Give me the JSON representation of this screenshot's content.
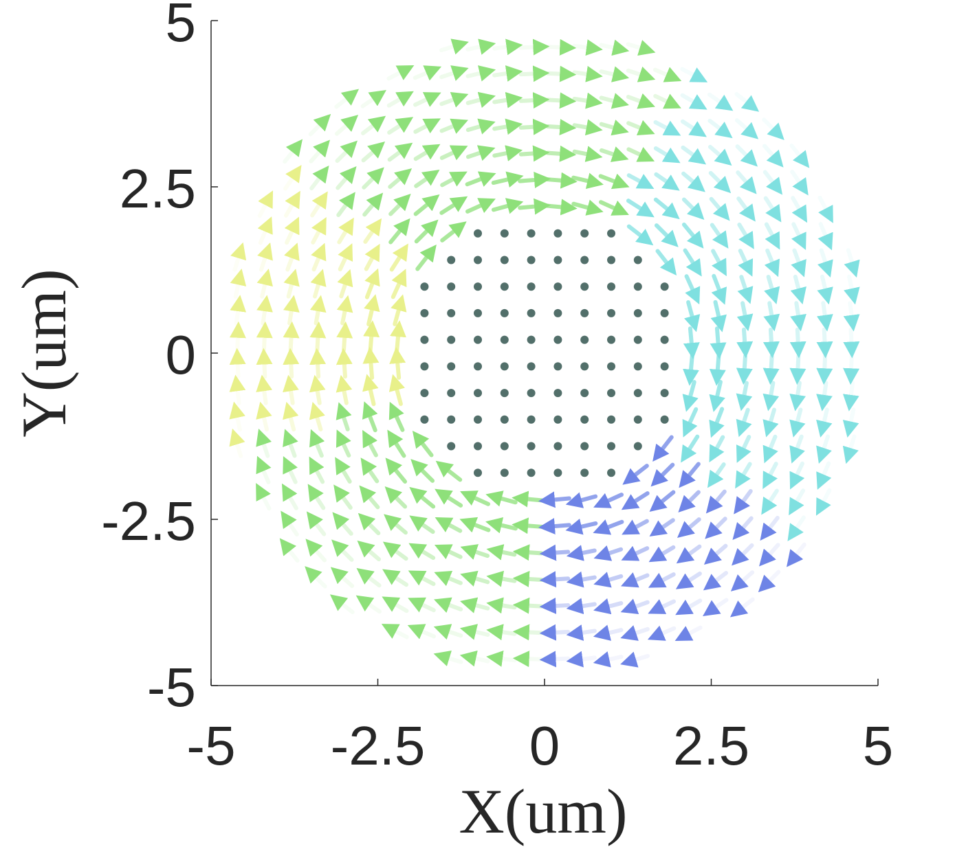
{
  "chart_data": {
    "type": "vector-field",
    "title": "",
    "xlabel": "X(um)",
    "ylabel": "Y(um)",
    "xlim": [
      -5,
      5
    ],
    "ylim": [
      -5,
      5
    ],
    "xticks": [
      "-5",
      "-2.5",
      "0",
      "2.5",
      "5"
    ],
    "yticks": [
      "-5",
      "-2.5",
      "0",
      "2.5",
      "5"
    ],
    "xtick_values": [
      -5,
      -2.5,
      0,
      2.5,
      5
    ],
    "ytick_values": [
      -5,
      -2.5,
      0,
      2.5,
      5
    ],
    "grid": false,
    "legend": "none",
    "colors": {
      "axis": "#262626",
      "core": "#3f5f5a",
      "inner": "#5cb8a2",
      "ring": "#7fe0e0",
      "green": "#8ee07a",
      "yellow": "#e8f08a",
      "blue": "#6e84e6",
      "purple": "#7a5ad8",
      "pink": "#f08a8a"
    },
    "field": {
      "description_units": "um",
      "grid_spacing": 0.4,
      "skyrmion_center": [
        0,
        0
      ],
      "core_radius": 2.1,
      "wall_radius": 2.9,
      "outer_radius": 4.6,
      "in_plane_direction": "clockwise circulation around center in wall region, out-of-plane (dots) in core"
    }
  }
}
